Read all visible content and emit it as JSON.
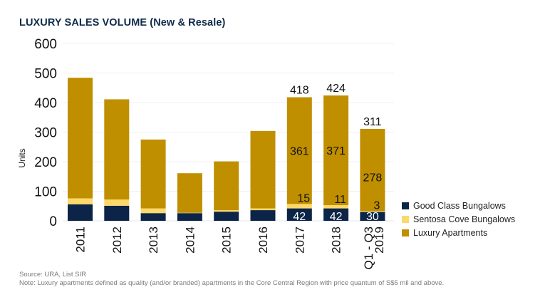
{
  "chart_data": {
    "type": "bar",
    "stacked": true,
    "title": "LUXURY SALES VOLUME (New & Resale)",
    "xlabel": "",
    "ylabel": "Units",
    "ylim": [
      0,
      600
    ],
    "yticks": [
      0,
      100,
      200,
      300,
      400,
      500,
      600
    ],
    "grid": true,
    "legend_position": "right-bottom",
    "categories": [
      "2011",
      "2012",
      "2013",
      "2014",
      "2015",
      "2016",
      "2017",
      "2018",
      "Q1 - Q3 2019"
    ],
    "series": [
      {
        "name": "Good Class Bungalows",
        "color": "#0b2447",
        "values": [
          56,
          51,
          26,
          26,
          31,
          36,
          42,
          42,
          30
        ]
      },
      {
        "name": "Sentosa Cove Bungalows",
        "color": "#fdd96b",
        "values": [
          20,
          21,
          16,
          1,
          5,
          6,
          15,
          11,
          3
        ]
      },
      {
        "name": "Luxury Apartments",
        "color": "#bf8f00",
        "values": [
          408,
          339,
          233,
          134,
          165,
          262,
          361,
          371,
          278
        ]
      }
    ],
    "data_labels": {
      "2017": {
        "total": 418,
        "Luxury Apartments": 361,
        "Sentosa Cove Bungalows": 15,
        "Good Class Bungalows": 42
      },
      "2018": {
        "total": 424,
        "Luxury Apartments": 371,
        "Sentosa Cove Bungalows": 11,
        "Good Class Bungalows": 42
      },
      "Q1 - Q3 2019": {
        "total": 311,
        "Luxury Apartments": 278,
        "Sentosa Cove Bungalows": 3,
        "Good Class Bungalows": 30
      }
    }
  },
  "footer": {
    "source": "Source: URA, List SIR",
    "note": "Note: Luxury apartments defined as quality (and/or branded) apartments in the Core Central Region with price quantum of S$5 mil and above."
  }
}
